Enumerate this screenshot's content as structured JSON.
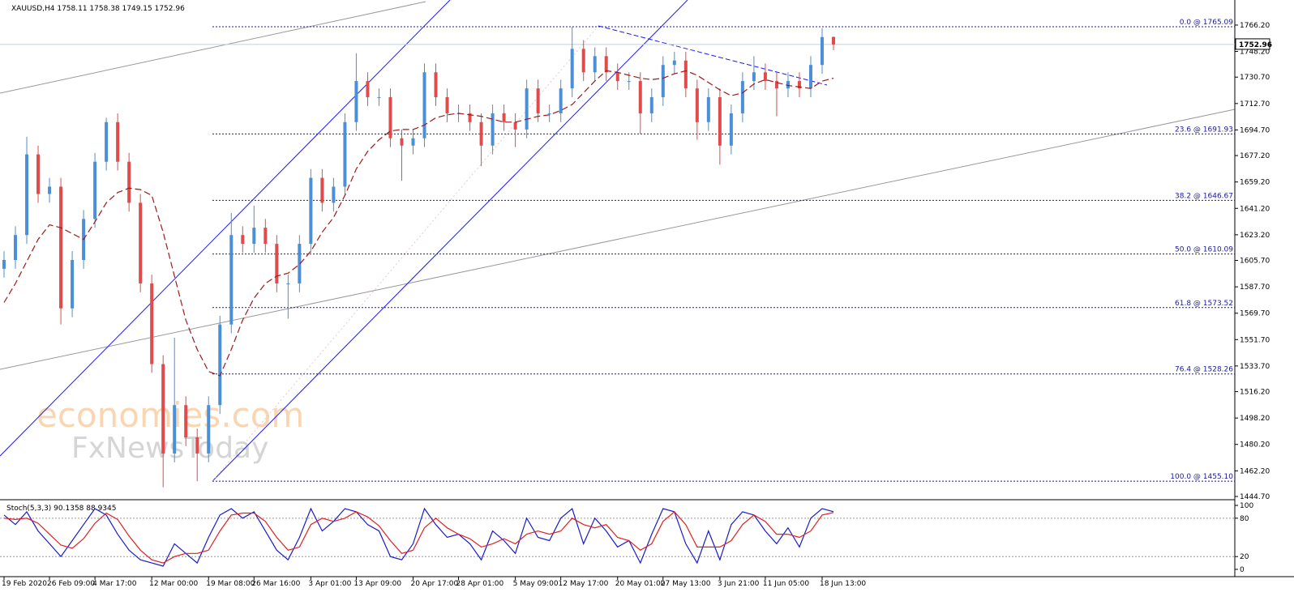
{
  "chart_data": {
    "type": "candlestick",
    "title": "XAUUSD,H4  1758.11 1758.38 1749.15 1752.96",
    "watermark": [
      "economies.com",
      "FxNewsToday"
    ],
    "categories": [
      "19 Feb 2020",
      null,
      null,
      null,
      "26 Feb 09:00",
      null,
      null,
      null,
      "4 Mar 17:00",
      null,
      null,
      null,
      null,
      "12 Mar 00:00",
      null,
      null,
      null,
      null,
      "19 Mar 08:00",
      null,
      null,
      null,
      "26 Mar 16:00",
      null,
      null,
      null,
      null,
      "3 Apr 01:00",
      null,
      null,
      null,
      "13 Apr 09:00",
      null,
      null,
      null,
      null,
      "20 Apr 17:00",
      null,
      null,
      null,
      "28 Apr 01:00",
      null,
      null,
      null,
      null,
      "5 May 09:00",
      null,
      null,
      null,
      "12 May 17:00",
      null,
      null,
      null,
      null,
      "20 May 01:00",
      null,
      null,
      null,
      "27 May 13:00",
      null,
      null,
      null,
      null,
      "3 Jun 21:00",
      null,
      null,
      null,
      "11 Jun 05:00",
      null,
      null,
      null,
      null,
      "18 Jun 13:00",
      null
    ],
    "open": [
      1600,
      1606,
      1623,
      1678,
      1651,
      1656,
      1573,
      1606,
      1634,
      1673,
      1700,
      1673,
      1645,
      1590,
      1535,
      1474,
      1507,
      1485,
      1474,
      1507,
      1562,
      1623,
      1617,
      1628,
      1617,
      1590,
      1590,
      1617,
      1662,
      1645,
      1656,
      1700,
      1728,
      1717,
      1717,
      1689,
      1684,
      1689,
      1734,
      1717,
      1706,
      1706,
      1700,
      1684,
      1706,
      1700,
      1695,
      1723,
      1706,
      1706,
      1723,
      1750,
      1734,
      1745,
      1734,
      1728,
      1728,
      1706,
      1717,
      1739,
      1742,
      1723,
      1700,
      1717,
      1684,
      1706,
      1728,
      1734,
      1728,
      1723,
      1728,
      1723,
      1739,
      1758.11
    ],
    "high": [
      1612,
      1629,
      1690,
      1684,
      1662,
      1662,
      1612,
      1640,
      1679,
      1703,
      1706,
      1679,
      1651,
      1596,
      1541,
      1553,
      1513,
      1491,
      1513,
      1568,
      1638,
      1629,
      1643,
      1634,
      1623,
      1596,
      1623,
      1668,
      1668,
      1662,
      1706,
      1747,
      1734,
      1723,
      1723,
      1695,
      1695,
      1740,
      1740,
      1723,
      1712,
      1712,
      1706,
      1712,
      1712,
      1706,
      1729,
      1729,
      1712,
      1729,
      1765.09,
      1756,
      1751,
      1751,
      1740,
      1734,
      1734,
      1723,
      1745,
      1748,
      1748,
      1729,
      1723,
      1723,
      1712,
      1734,
      1745,
      1740,
      1734,
      1734,
      1734,
      1745,
      1764,
      1758.38
    ],
    "low": [
      1594,
      1600,
      1617,
      1645,
      1645,
      1562,
      1567,
      1600,
      1628,
      1667,
      1667,
      1639,
      1584,
      1529,
      1451,
      1468,
      1479,
      1455.1,
      1468,
      1501,
      1556,
      1611,
      1611,
      1611,
      1584,
      1566,
      1584,
      1611,
      1639,
      1639,
      1650,
      1694,
      1711,
      1711,
      1683,
      1660,
      1678,
      1683,
      1711,
      1700,
      1700,
      1694,
      1670,
      1678,
      1694,
      1683,
      1689,
      1700,
      1700,
      1700,
      1717,
      1728,
      1728,
      1728,
      1722,
      1722,
      1692,
      1700,
      1711,
      1733,
      1717,
      1688,
      1694,
      1671,
      1678,
      1700,
      1722,
      1722,
      1704,
      1717,
      1717,
      1717,
      1733,
      1749.15
    ],
    "close": [
      1606,
      1623,
      1678,
      1651,
      1656,
      1573,
      1606,
      1634,
      1673,
      1700,
      1673,
      1645,
      1590,
      1535,
      1474,
      1507,
      1485,
      1474,
      1507,
      1562,
      1623,
      1617,
      1628,
      1617,
      1590,
      1590,
      1617,
      1662,
      1645,
      1656,
      1700,
      1728,
      1717,
      1717,
      1689,
      1684,
      1689,
      1734,
      1717,
      1706,
      1706,
      1700,
      1684,
      1706,
      1700,
      1695,
      1723,
      1706,
      1706,
      1723,
      1750,
      1734,
      1745,
      1734,
      1728,
      1728,
      1706,
      1717,
      1739,
      1742,
      1723,
      1700,
      1717,
      1684,
      1706,
      1728,
      1734,
      1728,
      1723,
      1728,
      1723,
      1739,
      1758,
      1752.96
    ],
    "up_color": "#4a8fd8",
    "down_color": "#e24b4b",
    "ma": {
      "color": "#a01818",
      "values": [
        1577,
        1590,
        1605,
        1620,
        1630,
        1628,
        1624,
        1620,
        1632,
        1645,
        1652,
        1655,
        1654,
        1650,
        1625,
        1595,
        1565,
        1545,
        1530,
        1527,
        1545,
        1565,
        1580,
        1590,
        1595,
        1597,
        1603,
        1612,
        1625,
        1635,
        1650,
        1668,
        1680,
        1688,
        1694,
        1695,
        1695,
        1698,
        1703,
        1705,
        1706,
        1705,
        1704,
        1702,
        1700,
        1700,
        1702,
        1704,
        1705,
        1708,
        1712,
        1720,
        1728,
        1735,
        1734,
        1732,
        1730,
        1729,
        1730,
        1733,
        1735,
        1732,
        1727,
        1722,
        1718,
        1720,
        1726,
        1729,
        1727,
        1725,
        1724,
        1723,
        1728,
        1730
      ]
    },
    "last_price": 1752.96,
    "ylim": [
      1443.6,
      1783.3
    ],
    "yticks": [
      {
        "value": 1766.2,
        "label": "1766.20"
      },
      {
        "value": 1748.2,
        "label": "1748.20"
      },
      {
        "value": 1730.7,
        "label": "1730.70"
      },
      {
        "value": 1712.7,
        "label": "1712.70"
      },
      {
        "value": 1694.7,
        "label": "1694.70"
      },
      {
        "value": 1677.2,
        "label": "1677.20"
      },
      {
        "value": 1659.2,
        "label": "1659.20"
      },
      {
        "value": 1641.2,
        "label": "1641.20"
      },
      {
        "value": 1623.2,
        "label": "1623.20"
      },
      {
        "value": 1605.7,
        "label": "1605.70"
      },
      {
        "value": 1587.7,
        "label": "1587.70"
      },
      {
        "value": 1569.7,
        "label": "1569.70"
      },
      {
        "value": 1551.7,
        "label": "1551.70"
      },
      {
        "value": 1533.7,
        "label": "1533.70"
      },
      {
        "value": 1516.2,
        "label": "1516.20"
      },
      {
        "value": 1498.2,
        "label": "1498.20"
      },
      {
        "value": 1480.2,
        "label": "1480.20"
      },
      {
        "value": 1462.2,
        "label": "1462.20"
      },
      {
        "value": 1444.7,
        "label": "1444.70"
      }
    ],
    "fib_levels": [
      {
        "value": 1765.09,
        "label": "0.0 @ 1765.09"
      },
      {
        "value": 1691.93,
        "label": "23.6 @ 1691.93"
      },
      {
        "value": 1646.67,
        "label": "38.2 @ 1646.67"
      },
      {
        "value": 1610.09,
        "label": "50.0 @ 1610.09"
      },
      {
        "value": 1573.52,
        "label": "61.8 @ 1573.52"
      },
      {
        "value": 1528.26,
        "label": "76.4 @ 1528.26"
      },
      {
        "value": 1455.1,
        "label": "100.0 @ 1455.10"
      }
    ],
    "fib_color": "#1a1a9c",
    "stochastic": {
      "title": "Stoch(5,3,3) 90.1358 88.9345",
      "ylim": [
        -11.4,
        105.1
      ],
      "yticks": [
        100,
        80,
        20,
        0
      ],
      "levels": [
        80,
        20
      ],
      "series": [
        {
          "color": "#1a1acc",
          "values": [
            85,
            70,
            90,
            60,
            40,
            20,
            45,
            70,
            95,
            85,
            55,
            30,
            15,
            10,
            5,
            40,
            25,
            10,
            50,
            85,
            95,
            80,
            90,
            60,
            30,
            15,
            50,
            95,
            60,
            75,
            95,
            90,
            70,
            60,
            20,
            15,
            40,
            95,
            70,
            50,
            55,
            40,
            15,
            60,
            45,
            25,
            80,
            50,
            45,
            80,
            95,
            40,
            80,
            60,
            35,
            45,
            10,
            55,
            95,
            90,
            40,
            10,
            60,
            15,
            70,
            90,
            85,
            60,
            40,
            65,
            35,
            80,
            95,
            90.1358
          ]
        },
        {
          "color": "#e02020",
          "values": [
            80,
            78,
            80,
            72,
            55,
            38,
            33,
            48,
            72,
            88,
            78,
            52,
            30,
            15,
            10,
            20,
            25,
            25,
            30,
            60,
            85,
            88,
            88,
            75,
            50,
            30,
            35,
            70,
            80,
            75,
            80,
            90,
            82,
            68,
            45,
            25,
            30,
            65,
            80,
            65,
            55,
            48,
            35,
            40,
            48,
            40,
            55,
            60,
            55,
            60,
            80,
            70,
            65,
            70,
            50,
            45,
            30,
            40,
            75,
            90,
            70,
            35,
            35,
            35,
            45,
            70,
            85,
            75,
            55,
            55,
            50,
            60,
            85,
            88.9345
          ]
        }
      ]
    }
  }
}
